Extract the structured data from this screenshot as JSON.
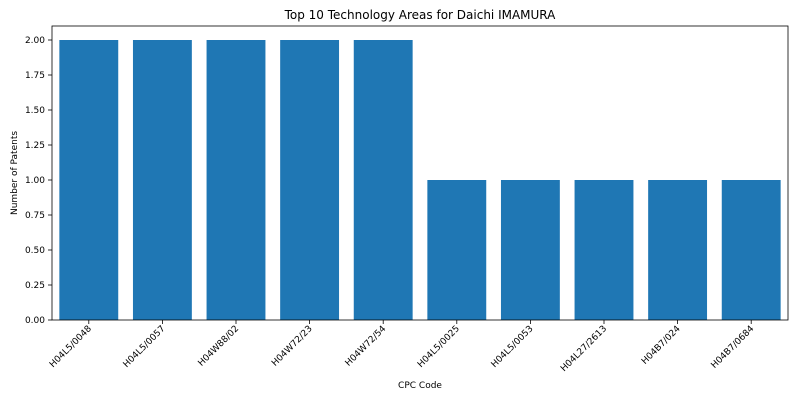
{
  "chart_data": {
    "type": "bar",
    "title": "Top 10 Technology Areas for Daichi IMAMURA",
    "xlabel": "CPC Code",
    "ylabel": "Number of Patents",
    "categories": [
      "H04L5/0048",
      "H04L5/0057",
      "H04W88/02",
      "H04W72/23",
      "H04W72/54",
      "H04L5/0025",
      "H04L5/0053",
      "H04L27/2613",
      "H04B7/024",
      "H04B7/0684"
    ],
    "values": [
      2,
      2,
      2,
      2,
      2,
      1,
      1,
      1,
      1,
      1
    ],
    "ylim": [
      0,
      2.1
    ],
    "yticks": [
      "0.00",
      "0.25",
      "0.50",
      "0.75",
      "1.00",
      "1.25",
      "1.50",
      "1.75",
      "2.00"
    ],
    "grid": false,
    "legend": "none",
    "bar_color": "#1f77b4"
  }
}
